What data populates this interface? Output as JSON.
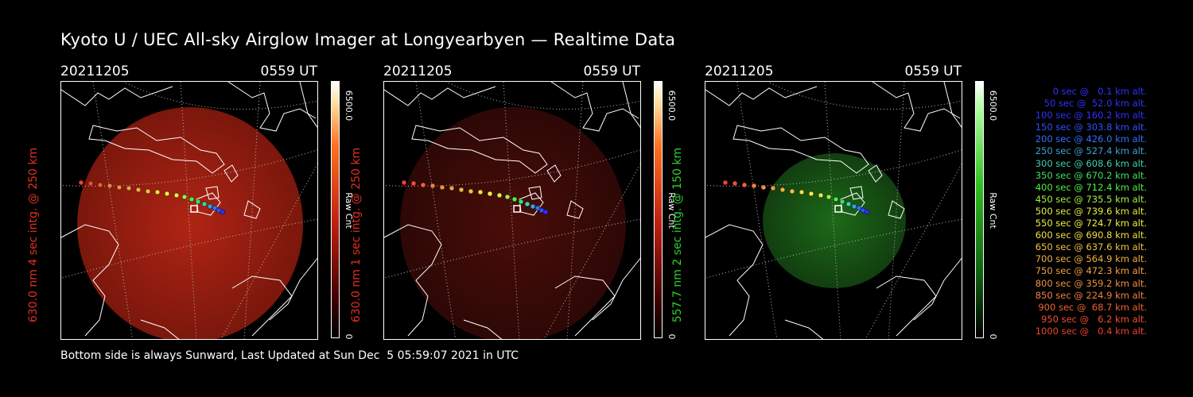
{
  "title": "Kyoto U / UEC All-sky Airglow Imager at Longyearbyen — Realtime Data",
  "footer": "Bottom side is always Sunward, Last Updated at Sun Dec  5 05:59:07 2021 in UTC",
  "panels": [
    {
      "date": "20211205",
      "time": "0559 UT",
      "ylabel": "630.0 nm 4 sec intg. @ 250 km",
      "label_color": "#e03020",
      "colorbar_max": "6500.0",
      "colorbar_min": "0",
      "colorbar_unit": "Raw Cnt",
      "colormap": "red",
      "brightness": "bright"
    },
    {
      "date": "20211205",
      "time": "0559 UT",
      "ylabel": "630.0 nm 1 sec intg. @ 250 km",
      "label_color": "#e03020",
      "colorbar_max": "6500.0",
      "colorbar_min": "0",
      "colorbar_unit": "Raw Cnt",
      "colormap": "red",
      "brightness": "dim"
    },
    {
      "date": "20211205",
      "time": "0559 UT",
      "ylabel": "557.7 nm 2 sec intg. @ 150 km",
      "label_color": "#30d030",
      "colorbar_max": "6500.0",
      "colorbar_min": "0",
      "colorbar_unit": "Raw Cnt",
      "colormap": "green",
      "brightness": "dim"
    }
  ],
  "trajectory_legend": [
    {
      "text": "0 sec @   0.1 km alt.",
      "color": "#3030ff"
    },
    {
      "text": "50 sec @  52.0 km alt.",
      "color": "#3030ff"
    },
    {
      "text": "100 sec @ 160.2 km alt.",
      "color": "#3030ff"
    },
    {
      "text": "150 sec @ 303.8 km alt.",
      "color": "#3050ff"
    },
    {
      "text": "200 sec @ 426.0 km alt.",
      "color": "#3070ff"
    },
    {
      "text": "250 sec @ 527.4 km alt.",
      "color": "#40a0d0"
    },
    {
      "text": "300 sec @ 608.6 km alt.",
      "color": "#40d0b0"
    },
    {
      "text": "350 sec @ 670.2 km alt.",
      "color": "#40e060"
    },
    {
      "text": "400 sec @ 712.4 km alt.",
      "color": "#50f040"
    },
    {
      "text": "450 sec @ 735.5 km alt.",
      "color": "#a0f040"
    },
    {
      "text": "500 sec @ 739.6 km alt.",
      "color": "#e0f040"
    },
    {
      "text": "550 sec @ 724.7 km alt.",
      "color": "#f0f040"
    },
    {
      "text": "600 sec @ 690.8 km alt.",
      "color": "#f0e040"
    },
    {
      "text": "650 sec @ 637.6 km alt.",
      "color": "#f0c040"
    },
    {
      "text": "700 sec @ 564.9 km alt.",
      "color": "#f0b040"
    },
    {
      "text": "750 sec @ 472.3 km alt.",
      "color": "#f0a040"
    },
    {
      "text": "800 sec @ 359.2 km alt.",
      "color": "#f09040"
    },
    {
      "text": "850 sec @ 224.9 km alt.",
      "color": "#f08040"
    },
    {
      "text": "900 sec @  68.7 km alt.",
      "color": "#f06030"
    },
    {
      "text": "950 sec @   6.2 km alt.",
      "color": "#f05030"
    },
    {
      "text": "1000 sec @   0.4 km alt.",
      "color": "#f04030"
    }
  ]
}
